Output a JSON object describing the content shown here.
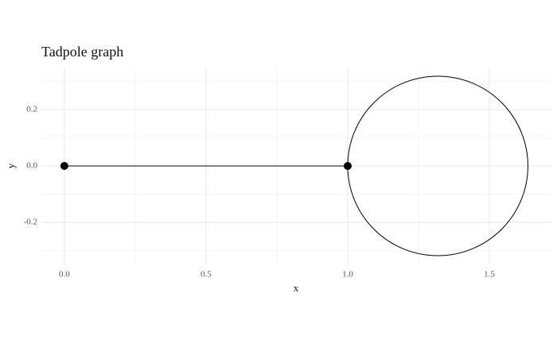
{
  "chart_data": {
    "type": "tadpole",
    "title": "Tadpole graph",
    "x_label": "x",
    "y_label": "y",
    "segment": {
      "x": [
        0,
        1
      ],
      "y": [
        0,
        0
      ]
    },
    "points": {
      "x": [
        0,
        1
      ],
      "y": [
        0,
        0
      ]
    },
    "circle": {
      "center": [
        1.318,
        0
      ],
      "radius": 0.318
    },
    "xlim": [
      -0.081,
      1.719
    ],
    "ylim": [
      -0.349,
      0.349
    ],
    "xticks": [
      {
        "value": 0,
        "label": "0.0"
      },
      0.5,
      {
        "value": 1,
        "label": "1.0"
      },
      1.5
    ],
    "yticks": [
      -0.2,
      {
        "value": 0,
        "label": "0.0"
      },
      0.2
    ],
    "xminor": [
      0.25,
      0.75,
      1.25
    ],
    "yminor": [
      -0.3,
      -0.1,
      0.1,
      0.3
    ],
    "grid": true,
    "color": "#000000"
  }
}
